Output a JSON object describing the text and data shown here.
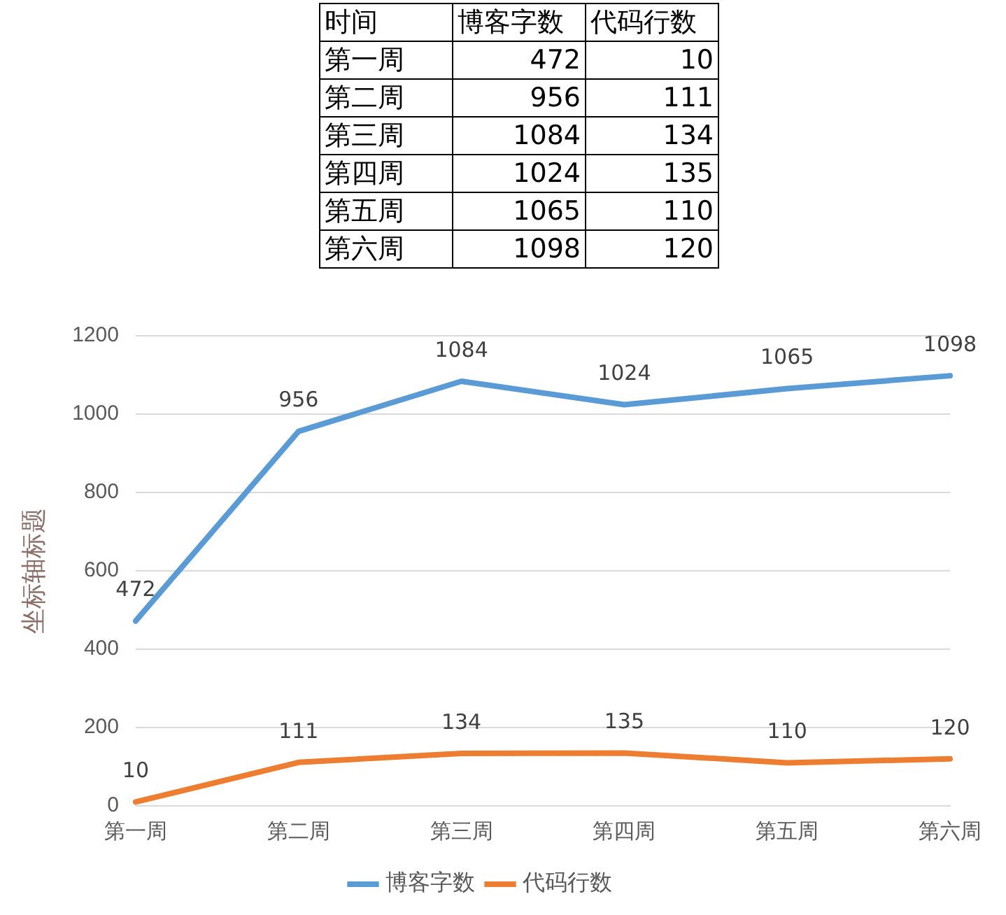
{
  "chart_data": {
    "type": "line",
    "ylabel": "坐标轴标题",
    "annotations": [
      "时间"
    ],
    "categories": [
      "第一周",
      "第二周",
      "第三周",
      "第四周",
      "第五周",
      "第六周"
    ],
    "series": [
      {
        "name": "博客字数",
        "color": "#5b9bd5",
        "values": [
          472,
          956,
          1084,
          1024,
          1065,
          1098
        ],
        "value_labels": [
          "472",
          "956",
          "1084",
          "1024",
          "1065",
          "1098"
        ]
      },
      {
        "name": "代码行数",
        "color": "#ed7d31",
        "values": [
          10,
          111,
          134,
          135,
          110,
          120
        ],
        "value_labels": [
          "10",
          "111",
          "134",
          "135",
          "110",
          "120"
        ]
      }
    ],
    "ylim": [
      0,
      1200
    ],
    "yticks": [
      0,
      200,
      400,
      600,
      800,
      1000,
      1200
    ],
    "grid": "y",
    "legend": "bottom",
    "marker": "none",
    "line_style": "solid"
  }
}
